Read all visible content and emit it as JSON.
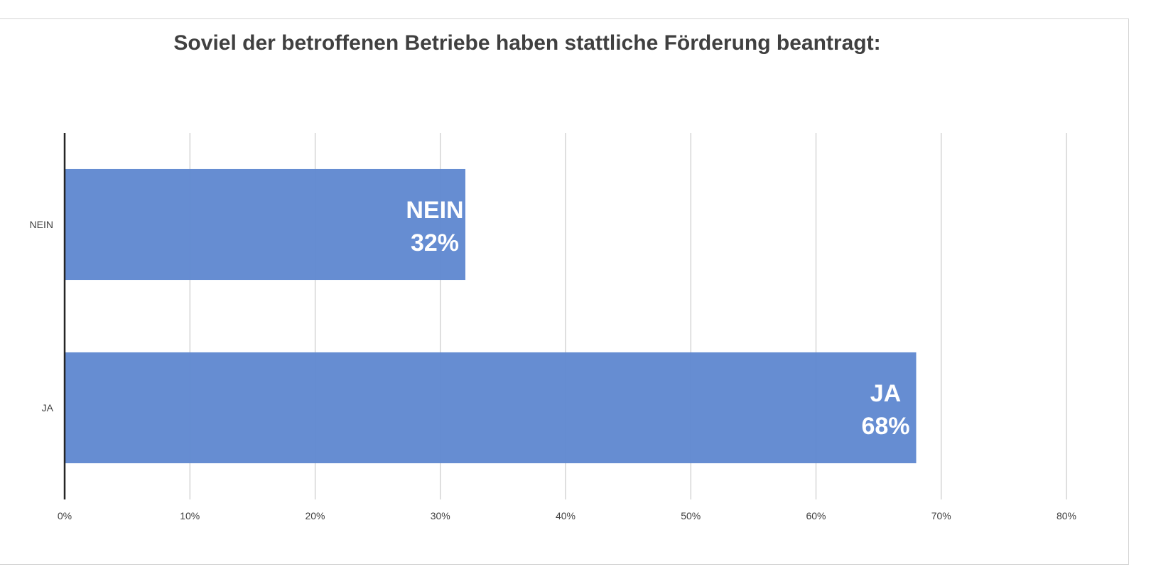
{
  "chart_data": {
    "type": "bar",
    "orientation": "horizontal",
    "title": "Soviel der betroffenen Betriebe haben stattliche Förderung beantragt:",
    "categories": [
      "NEIN",
      "JA"
    ],
    "values": [
      32,
      68
    ],
    "data_labels": [
      {
        "name": "NEIN",
        "value": "32%"
      },
      {
        "name": "JA",
        "value": "68%"
      }
    ],
    "xlim": [
      0,
      80
    ],
    "x_ticks": [
      "0%",
      "10%",
      "20%",
      "30%",
      "40%",
      "50%",
      "60%",
      "70%",
      "80%"
    ],
    "grid": true,
    "legend": "none",
    "bar_color": "#6088d0"
  }
}
